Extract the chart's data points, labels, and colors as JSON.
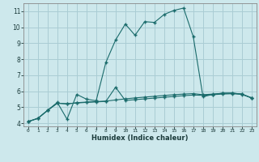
{
  "xlabel": "Humidex (Indice chaleur)",
  "ylabel": "",
  "bg_color": "#cde8ec",
  "grid_color": "#aacdd4",
  "line_color": "#1a6b6b",
  "xlim": [
    -0.5,
    23.5
  ],
  "ylim": [
    3.8,
    11.5
  ],
  "xticks": [
    0,
    1,
    2,
    3,
    4,
    5,
    6,
    7,
    8,
    9,
    10,
    11,
    12,
    13,
    14,
    15,
    16,
    17,
    18,
    19,
    20,
    21,
    22,
    23
  ],
  "yticks": [
    4,
    5,
    6,
    7,
    8,
    9,
    10,
    11
  ],
  "series1_x": [
    0,
    1,
    2,
    3,
    4,
    5,
    6,
    7,
    8,
    9,
    10,
    11,
    12,
    13,
    14,
    15,
    16,
    17,
    18,
    19,
    20,
    21,
    22,
    23
  ],
  "series1_y": [
    4.1,
    4.3,
    4.8,
    5.3,
    4.25,
    5.8,
    5.5,
    5.4,
    7.8,
    9.2,
    10.2,
    9.5,
    10.35,
    10.3,
    10.8,
    11.05,
    11.2,
    9.4,
    5.65,
    5.8,
    5.88,
    5.88,
    5.82,
    5.58
  ],
  "series2_x": [
    0,
    1,
    2,
    3,
    4,
    5,
    6,
    7,
    8,
    9,
    10,
    11,
    12,
    13,
    14,
    15,
    16,
    17,
    18,
    19,
    20,
    21,
    22,
    23
  ],
  "series2_y": [
    4.1,
    4.3,
    4.8,
    5.25,
    5.2,
    5.28,
    5.32,
    5.35,
    5.38,
    5.45,
    5.52,
    5.58,
    5.63,
    5.68,
    5.73,
    5.78,
    5.82,
    5.85,
    5.78,
    5.82,
    5.86,
    5.88,
    5.82,
    5.58
  ],
  "series3_x": [
    0,
    1,
    2,
    3,
    4,
    5,
    6,
    7,
    8,
    9,
    10,
    11,
    12,
    13,
    14,
    15,
    16,
    17,
    18,
    19,
    20,
    21,
    22,
    23
  ],
  "series3_y": [
    4.1,
    4.3,
    4.8,
    5.25,
    5.22,
    5.26,
    5.3,
    5.33,
    5.36,
    6.25,
    5.42,
    5.47,
    5.52,
    5.57,
    5.62,
    5.67,
    5.72,
    5.76,
    5.74,
    5.78,
    5.82,
    5.84,
    5.8,
    5.58
  ],
  "marker": "+",
  "markersize": 3.0,
  "linewidth": 0.8
}
